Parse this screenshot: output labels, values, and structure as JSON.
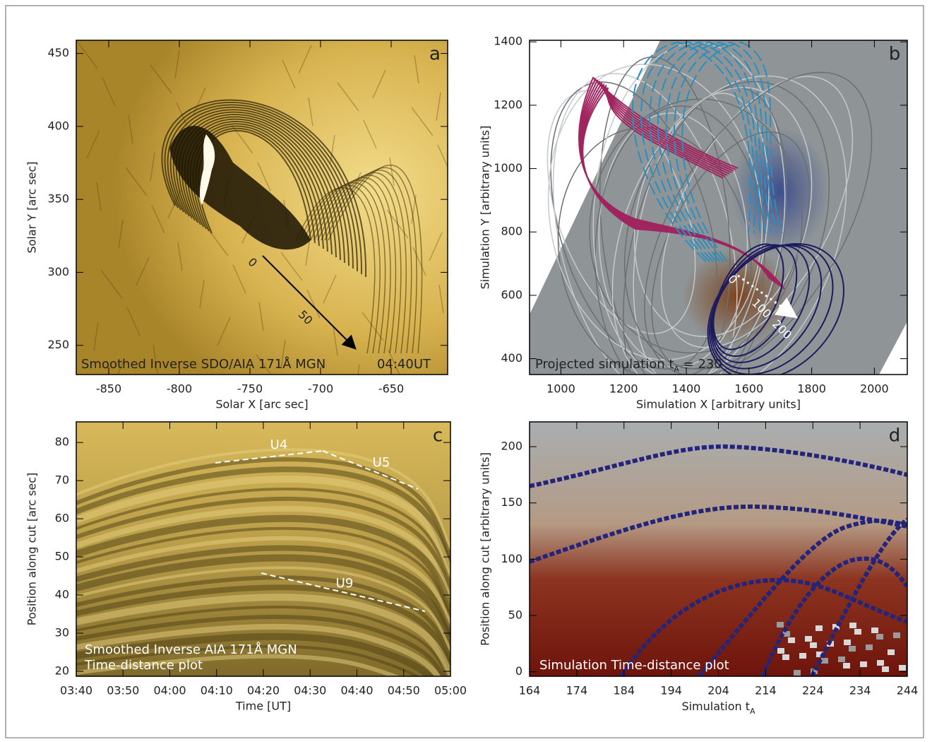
{
  "chart_data": [
    {
      "type": "image",
      "panel": "a",
      "xlabel": "Solar X [arc sec]",
      "ylabel": "Solar Y [arc sec]",
      "xlim": [
        -873,
        -610
      ],
      "ylim": [
        230,
        459
      ],
      "xticks": [
        -850,
        -800,
        -750,
        -700,
        -650
      ],
      "yticks": [
        250,
        300,
        350,
        400,
        450
      ],
      "annotation": "Smoothed Inverse SDO/AIA 171Å MGN",
      "time": "04:40UT",
      "cut_labels": [
        "0",
        "50"
      ]
    },
    {
      "type": "image",
      "panel": "b",
      "xlabel": "Simulation X [arbitrary units]",
      "ylabel": "Simulation Y [arbitrary units]",
      "xlim": [
        900,
        2105
      ],
      "ylim": [
        350,
        1405
      ],
      "xticks": [
        1000,
        1200,
        1400,
        1600,
        1800,
        2000
      ],
      "yticks": [
        400,
        600,
        800,
        1000,
        1200,
        1400
      ],
      "annotation": {
        "text": "Projected simulation  t",
        "sub": "A",
        "after": " = 230"
      },
      "cut_labels": [
        "0",
        "100",
        "200"
      ]
    },
    {
      "type": "image",
      "panel": "c",
      "xlabel": "Time [UT]",
      "ylabel": "Position along cut [arc sec]",
      "xlim": [
        "03:40",
        "05:00"
      ],
      "ylim": [
        18.7,
        85.4
      ],
      "xticks": [
        "03:40",
        "03:50",
        "04:00",
        "04:10",
        "04:20",
        "04:30",
        "04:40",
        "04:50",
        "05:00"
      ],
      "yticks": [
        20,
        30,
        40,
        50,
        60,
        70,
        80
      ],
      "annotation": [
        "Smoothed Inverse AIA 171Å MGN",
        "Time-distance plot"
      ],
      "fit_labels": [
        "U4",
        "U5",
        "U9"
      ]
    },
    {
      "type": "image",
      "panel": "d",
      "xlabel": {
        "text": "Simulation t",
        "sub": "A"
      },
      "ylabel": "Position along cut [arbitrary units]",
      "xlim": [
        164,
        244
      ],
      "ylim": [
        -4,
        222
      ],
      "xticks": [
        164,
        174,
        184,
        194,
        204,
        214,
        224,
        234,
        244
      ],
      "yticks": [
        0,
        50,
        100,
        150,
        200
      ],
      "annotation": "Simulation   Time-distance plot"
    }
  ]
}
